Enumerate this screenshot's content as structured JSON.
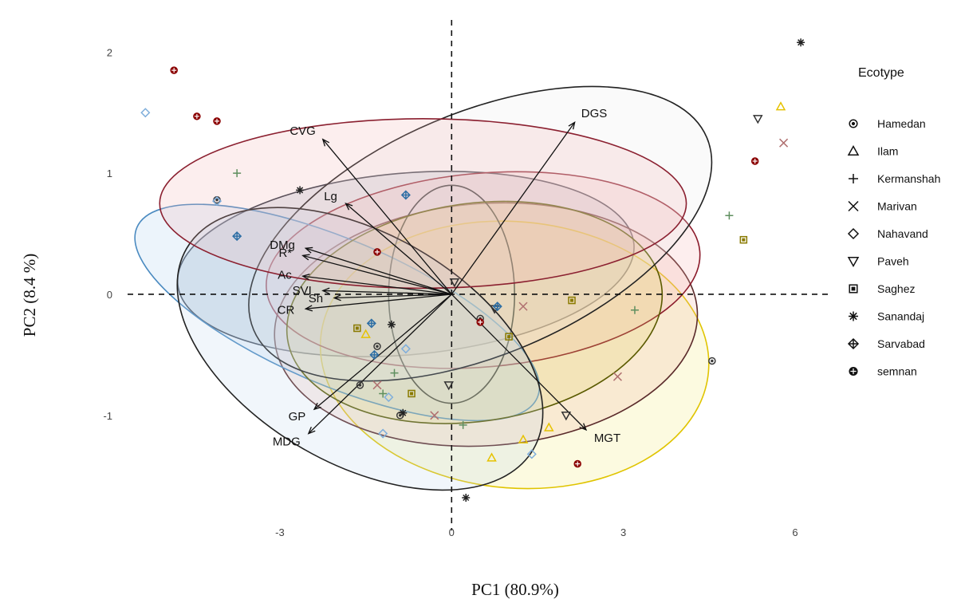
{
  "chart_data": {
    "type": "scatter",
    "title": "",
    "xlabel": "PC1 (80.9%)",
    "ylabel": "PC2 (8.4 %)",
    "xlim": [
      -5.8,
      6.6
    ],
    "ylim": [
      -1.95,
      2.2
    ],
    "xticks": [
      -3,
      0,
      3,
      6
    ],
    "yticks": [
      -1,
      0,
      1,
      2
    ],
    "reference_lines": {
      "x": 0,
      "y": 0,
      "style": "dashed"
    },
    "legend": {
      "title": "Ecotype",
      "position": "right"
    },
    "series": [
      {
        "name": "Hamedan",
        "symbol": "circle",
        "color": "#3a3a3a",
        "ellipse": {
          "cx": -0.8,
          "cy": 0.25,
          "rx": 4.0,
          "ry": 0.75,
          "angle": 5,
          "stroke": "#2f3440",
          "fill": "#8fa0b4"
        },
        "points": [
          [
            -4.1,
            0.78
          ],
          [
            -1.6,
            -0.75
          ],
          [
            -1.3,
            -0.43
          ],
          [
            -0.9,
            -1.0
          ],
          [
            4.55,
            -0.55
          ],
          [
            0.5,
            -0.2
          ]
        ]
      },
      {
        "name": "Ilam",
        "symbol": "triangle-up",
        "color": "#e6c200",
        "ellipse": {
          "cx": 1.1,
          "cy": -0.5,
          "rx": 3.4,
          "ry": 1.1,
          "angle": -5,
          "stroke": "#e0c400",
          "fill": "#f2ea70"
        },
        "points": [
          [
            5.75,
            1.55
          ],
          [
            0.7,
            -1.35
          ],
          [
            1.25,
            -1.2
          ],
          [
            -1.5,
            -0.33
          ],
          [
            1.7,
            -1.1
          ]
        ]
      },
      {
        "name": "Kermanshah",
        "symbol": "plus",
        "color": "#5f8f5f",
        "ellipse": {
          "cx": 0.6,
          "cy": -0.25,
          "rx": 3.7,
          "ry": 1.0,
          "angle": 4,
          "stroke": "#5a2a2a",
          "fill": "#f0b0a0"
        },
        "points": [
          [
            -3.75,
            1.0
          ],
          [
            4.85,
            0.65
          ],
          [
            -1.0,
            -0.65
          ],
          [
            0.2,
            -1.08
          ],
          [
            3.2,
            -0.13
          ],
          [
            -1.2,
            -0.82
          ]
        ]
      },
      {
        "name": "Marivan",
        "symbol": "cross",
        "color": "#b07070",
        "ellipse": {
          "cx": 0.55,
          "cy": 0.2,
          "rx": 3.8,
          "ry": 0.8,
          "angle": 5,
          "stroke": "#8b1a2a",
          "fill": "#f5b0b0"
        },
        "points": [
          [
            5.8,
            1.25
          ],
          [
            1.25,
            -0.1
          ],
          [
            2.9,
            -0.68
          ],
          [
            -0.3,
            -1.0
          ],
          [
            -1.3,
            -0.75
          ]
        ]
      },
      {
        "name": "Nahavand",
        "symbol": "diamond",
        "color": "#7faedb",
        "ellipse": {
          "cx": -2.0,
          "cy": -0.15,
          "rx": 3.8,
          "ry": 0.6,
          "angle": -23,
          "stroke": "#4a8ac0",
          "fill": "#a8cfee"
        },
        "points": [
          [
            -5.35,
            1.5
          ],
          [
            -4.1,
            0.77
          ],
          [
            -0.8,
            -0.45
          ],
          [
            -1.2,
            -1.15
          ],
          [
            1.4,
            -1.32
          ],
          [
            -1.1,
            -0.85
          ]
        ]
      },
      {
        "name": "Paveh",
        "symbol": "triangle-down",
        "color": "#333333",
        "ellipse": {
          "cx": 0.0,
          "cy": 0.0,
          "rx": 1.1,
          "ry": 0.9,
          "angle": 0,
          "stroke": "#333333",
          "fill": "#dddddd"
        },
        "points": [
          [
            5.35,
            1.45
          ],
          [
            0.05,
            0.1
          ],
          [
            2.0,
            -1.0
          ],
          [
            -0.05,
            -0.75
          ],
          [
            0.75,
            -0.12
          ]
        ]
      },
      {
        "name": "Saghez",
        "symbol": "square",
        "color": "#8a7a00",
        "ellipse": {
          "cx": 0.4,
          "cy": -0.15,
          "rx": 3.3,
          "ry": 0.9,
          "angle": 8,
          "stroke": "#5a5a00",
          "fill": "#ddd060"
        },
        "points": [
          [
            5.1,
            0.45
          ],
          [
            2.1,
            -0.05
          ],
          [
            -0.7,
            -0.82
          ],
          [
            -1.65,
            -0.28
          ],
          [
            1.0,
            -0.35
          ]
        ]
      },
      {
        "name": "Sanandaj",
        "symbol": "asterisk",
        "color": "#222222",
        "ellipse": {
          "cx": 0.5,
          "cy": 0.5,
          "rx": 4.3,
          "ry": 1.0,
          "angle": 23,
          "stroke": "#222222",
          "fill": "#e8e8e8"
        },
        "points": [
          [
            6.1,
            2.08
          ],
          [
            -2.65,
            0.86
          ],
          [
            0.25,
            -1.68
          ],
          [
            -0.85,
            -0.98
          ],
          [
            -1.05,
            -0.25
          ]
        ]
      },
      {
        "name": "Sarvabad",
        "symbol": "diamond-plus",
        "color": "#2e6fa5",
        "ellipse": {
          "cx": -1.6,
          "cy": -0.45,
          "rx": 3.5,
          "ry": 0.95,
          "angle": -30,
          "stroke": "#222222",
          "fill": "#c0d8ee"
        },
        "points": [
          [
            -0.8,
            0.82
          ],
          [
            -1.4,
            -0.24
          ],
          [
            0.8,
            -0.1
          ],
          [
            -3.75,
            0.48
          ],
          [
            -1.35,
            -0.5
          ]
        ]
      },
      {
        "name": "semnan",
        "symbol": "circle-plus",
        "color": "#8b0000",
        "ellipse": {
          "cx": -0.5,
          "cy": 0.75,
          "rx": 4.6,
          "ry": 0.7,
          "angle": 0,
          "stroke": "#8b2030",
          "fill": "#f2b0b0"
        },
        "points": [
          [
            -4.45,
            1.47
          ],
          [
            -4.1,
            1.43
          ],
          [
            5.3,
            1.1
          ],
          [
            0.5,
            -0.23
          ],
          [
            -1.3,
            0.35
          ],
          [
            -4.85,
            1.85
          ],
          [
            2.2,
            -1.4
          ]
        ]
      }
    ],
    "vectors": [
      {
        "label": "DGS",
        "x": 2.15,
        "y": 1.42
      },
      {
        "label": "CVG",
        "x": -2.25,
        "y": 1.28
      },
      {
        "label": "Lg",
        "x": -1.85,
        "y": 0.75
      },
      {
        "label": "DMg",
        "x": -2.55,
        "y": 0.38
      },
      {
        "label": "R*",
        "x": -2.6,
        "y": 0.32
      },
      {
        "label": "Ac",
        "x": -2.6,
        "y": 0.15
      },
      {
        "label": "SVI",
        "x": -2.25,
        "y": 0.03
      },
      {
        "label": "Sh",
        "x": -2.05,
        "y": -0.03
      },
      {
        "label": "CR",
        "x": -2.55,
        "y": -0.12
      },
      {
        "label": "GP",
        "x": -2.4,
        "y": -0.95
      },
      {
        "label": "MDG",
        "x": -2.5,
        "y": -1.15
      },
      {
        "label": "MGT",
        "x": 2.35,
        "y": -1.12
      }
    ]
  }
}
